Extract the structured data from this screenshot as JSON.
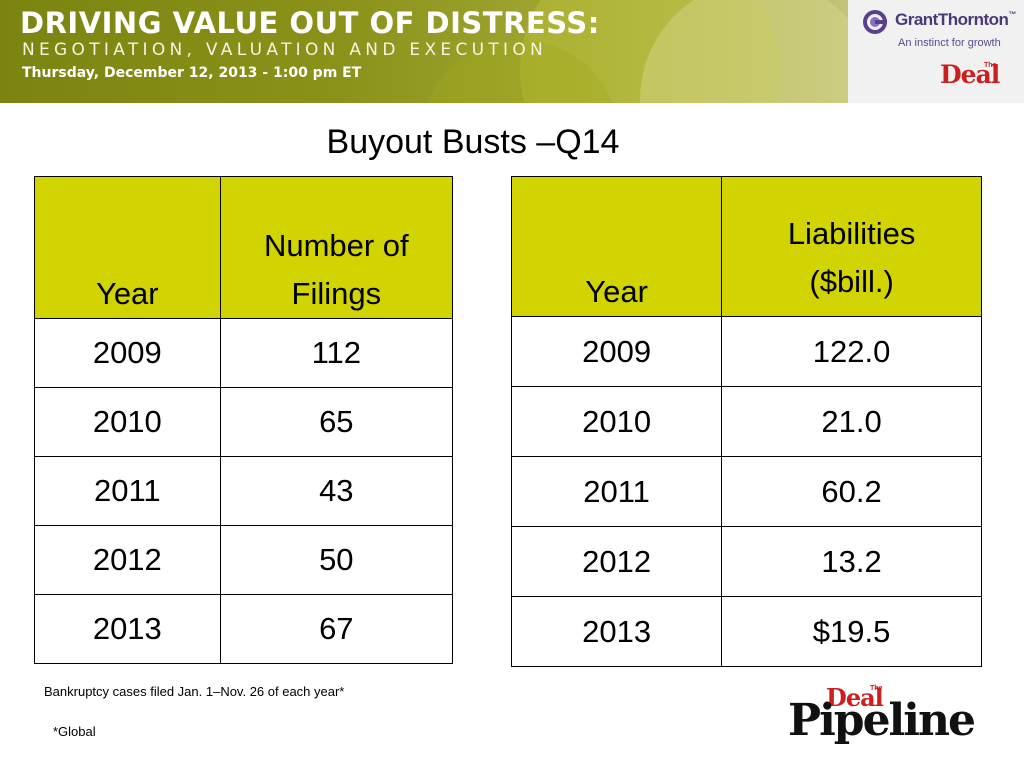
{
  "banner": {
    "title": "DRIVING VALUE OUT OF DISTRESS:",
    "subtitle": "NEGOTIATION, VALUATION AND EXECUTION",
    "date": "Thursday, December 12, 2013 - 1:00 pm ET"
  },
  "sponsors": {
    "grant_thornton_name": "GrantThornton",
    "grant_thornton_tagline": "An instinct for growth",
    "grant_thornton_tm": "™",
    "deal_the": "The",
    "deal_name": "Deal"
  },
  "slide": {
    "title": "Buyout Busts –Q14"
  },
  "filings_table": {
    "headers": [
      "Year",
      "Number of Filings"
    ],
    "rows": [
      [
        "2009",
        "112"
      ],
      [
        "2010",
        "65"
      ],
      [
        "2011",
        "43"
      ],
      [
        "2012",
        "50"
      ],
      [
        "2013",
        "67"
      ]
    ]
  },
  "liabilities_table": {
    "headers": [
      "Year",
      "Liabilities ($bill.)"
    ],
    "rows": [
      [
        "2009",
        "122.0"
      ],
      [
        "2010",
        "21.0"
      ],
      [
        "2011",
        "60.2"
      ],
      [
        "2012",
        "13.2"
      ],
      [
        "2013",
        "$19.5"
      ]
    ]
  },
  "notes": {
    "caption": "Bankruptcy cases filed Jan. 1–Nov. 26 of each year*",
    "footnote": "*Global"
  },
  "pipeline_logo": {
    "the": "The",
    "deal": "Deal",
    "pipeline": "Pipeline"
  },
  "colors": {
    "header_fill": "#d1d400",
    "banner_olive": "#8a921a",
    "deal_red": "#cc1f1f",
    "gt_purple": "#4a3a7a"
  }
}
